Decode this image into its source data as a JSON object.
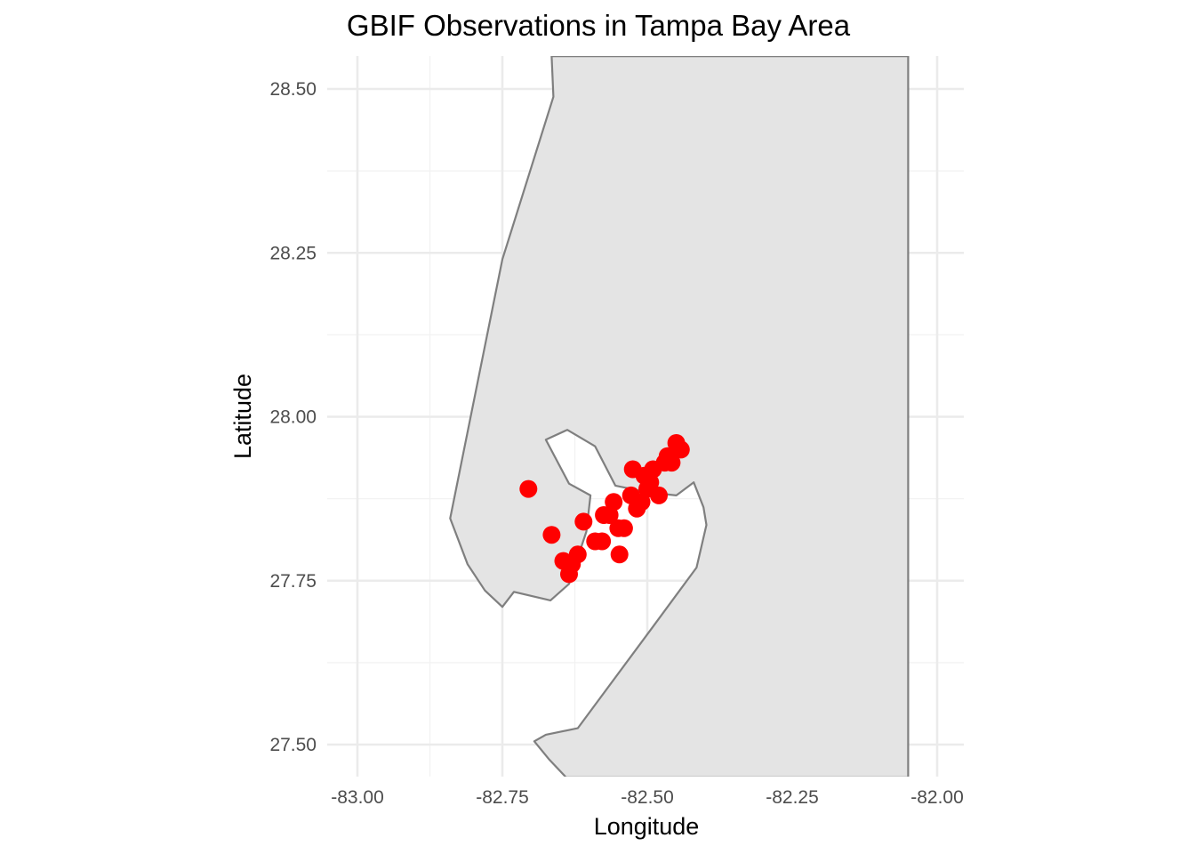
{
  "chart_data": {
    "type": "scatter",
    "title": "GBIF Observations in Tampa Bay Area",
    "xlabel": "Longitude",
    "ylabel": "Latitude",
    "xlim": [
      -83.1,
      -82.05
    ],
    "ylim": [
      27.45,
      28.55
    ],
    "x_ticks": [
      -83.0,
      -82.75,
      -82.5,
      -82.25,
      -82.0
    ],
    "x_tick_labels": [
      "-83.00",
      "-82.75",
      "-82.50",
      "-82.25",
      "-82.00"
    ],
    "y_ticks": [
      27.5,
      27.75,
      28.0,
      28.25,
      28.5
    ],
    "y_tick_labels": [
      "27.50",
      "27.75",
      "28.00",
      "28.25",
      "28.50"
    ],
    "grid": true,
    "legend": "none",
    "point_color": "#ff0000",
    "land_color": "#e4e4e4",
    "outline_color": "#7f7f7f",
    "map_layer": {
      "land_outline": [
        [
          -82.665,
          28.55
        ],
        [
          -82.662,
          28.488
        ],
        [
          -82.75,
          28.24
        ],
        [
          -82.84,
          27.845
        ],
        [
          -82.81,
          27.775
        ],
        [
          -82.78,
          27.735
        ],
        [
          -82.75,
          27.71
        ],
        [
          -82.73,
          27.733
        ],
        [
          -82.667,
          27.72
        ],
        [
          -82.635,
          27.745
        ],
        [
          -82.605,
          27.825
        ],
        [
          -82.598,
          27.88
        ],
        [
          -82.635,
          27.898
        ],
        [
          -82.675,
          27.965
        ],
        [
          -82.638,
          27.98
        ],
        [
          -82.59,
          27.955
        ],
        [
          -82.555,
          27.895
        ],
        [
          -82.5,
          27.885
        ],
        [
          -82.45,
          27.88
        ],
        [
          -82.42,
          27.9
        ],
        [
          -82.403,
          27.862
        ],
        [
          -82.398,
          27.835
        ],
        [
          -82.415,
          27.77
        ],
        [
          -82.49,
          27.68
        ],
        [
          -82.62,
          27.525
        ],
        [
          -82.675,
          27.515
        ],
        [
          -82.695,
          27.505
        ],
        [
          -82.67,
          27.478
        ],
        [
          -82.64,
          27.45
        ],
        [
          -82.05,
          27.45
        ],
        [
          -82.05,
          28.55
        ]
      ]
    },
    "points": [
      {
        "x": -82.705,
        "y": 27.89
      },
      {
        "x": -82.665,
        "y": 27.82
      },
      {
        "x": -82.645,
        "y": 27.78
      },
      {
        "x": -82.635,
        "y": 27.76
      },
      {
        "x": -82.63,
        "y": 27.775
      },
      {
        "x": -82.62,
        "y": 27.79
      },
      {
        "x": -82.61,
        "y": 27.84
      },
      {
        "x": -82.59,
        "y": 27.81
      },
      {
        "x": -82.578,
        "y": 27.81
      },
      {
        "x": -82.575,
        "y": 27.85
      },
      {
        "x": -82.565,
        "y": 27.85
      },
      {
        "x": -82.558,
        "y": 27.87
      },
      {
        "x": -82.55,
        "y": 27.83
      },
      {
        "x": -82.548,
        "y": 27.79
      },
      {
        "x": -82.54,
        "y": 27.83
      },
      {
        "x": -82.528,
        "y": 27.88
      },
      {
        "x": -82.525,
        "y": 27.92
      },
      {
        "x": -82.518,
        "y": 27.86
      },
      {
        "x": -82.51,
        "y": 27.87
      },
      {
        "x": -82.505,
        "y": 27.91
      },
      {
        "x": -82.5,
        "y": 27.89
      },
      {
        "x": -82.495,
        "y": 27.9
      },
      {
        "x": -82.49,
        "y": 27.92
      },
      {
        "x": -82.48,
        "y": 27.88
      },
      {
        "x": -82.47,
        "y": 27.93
      },
      {
        "x": -82.465,
        "y": 27.94
      },
      {
        "x": -82.458,
        "y": 27.93
      },
      {
        "x": -82.45,
        "y": 27.96
      },
      {
        "x": -82.442,
        "y": 27.95
      }
    ]
  }
}
